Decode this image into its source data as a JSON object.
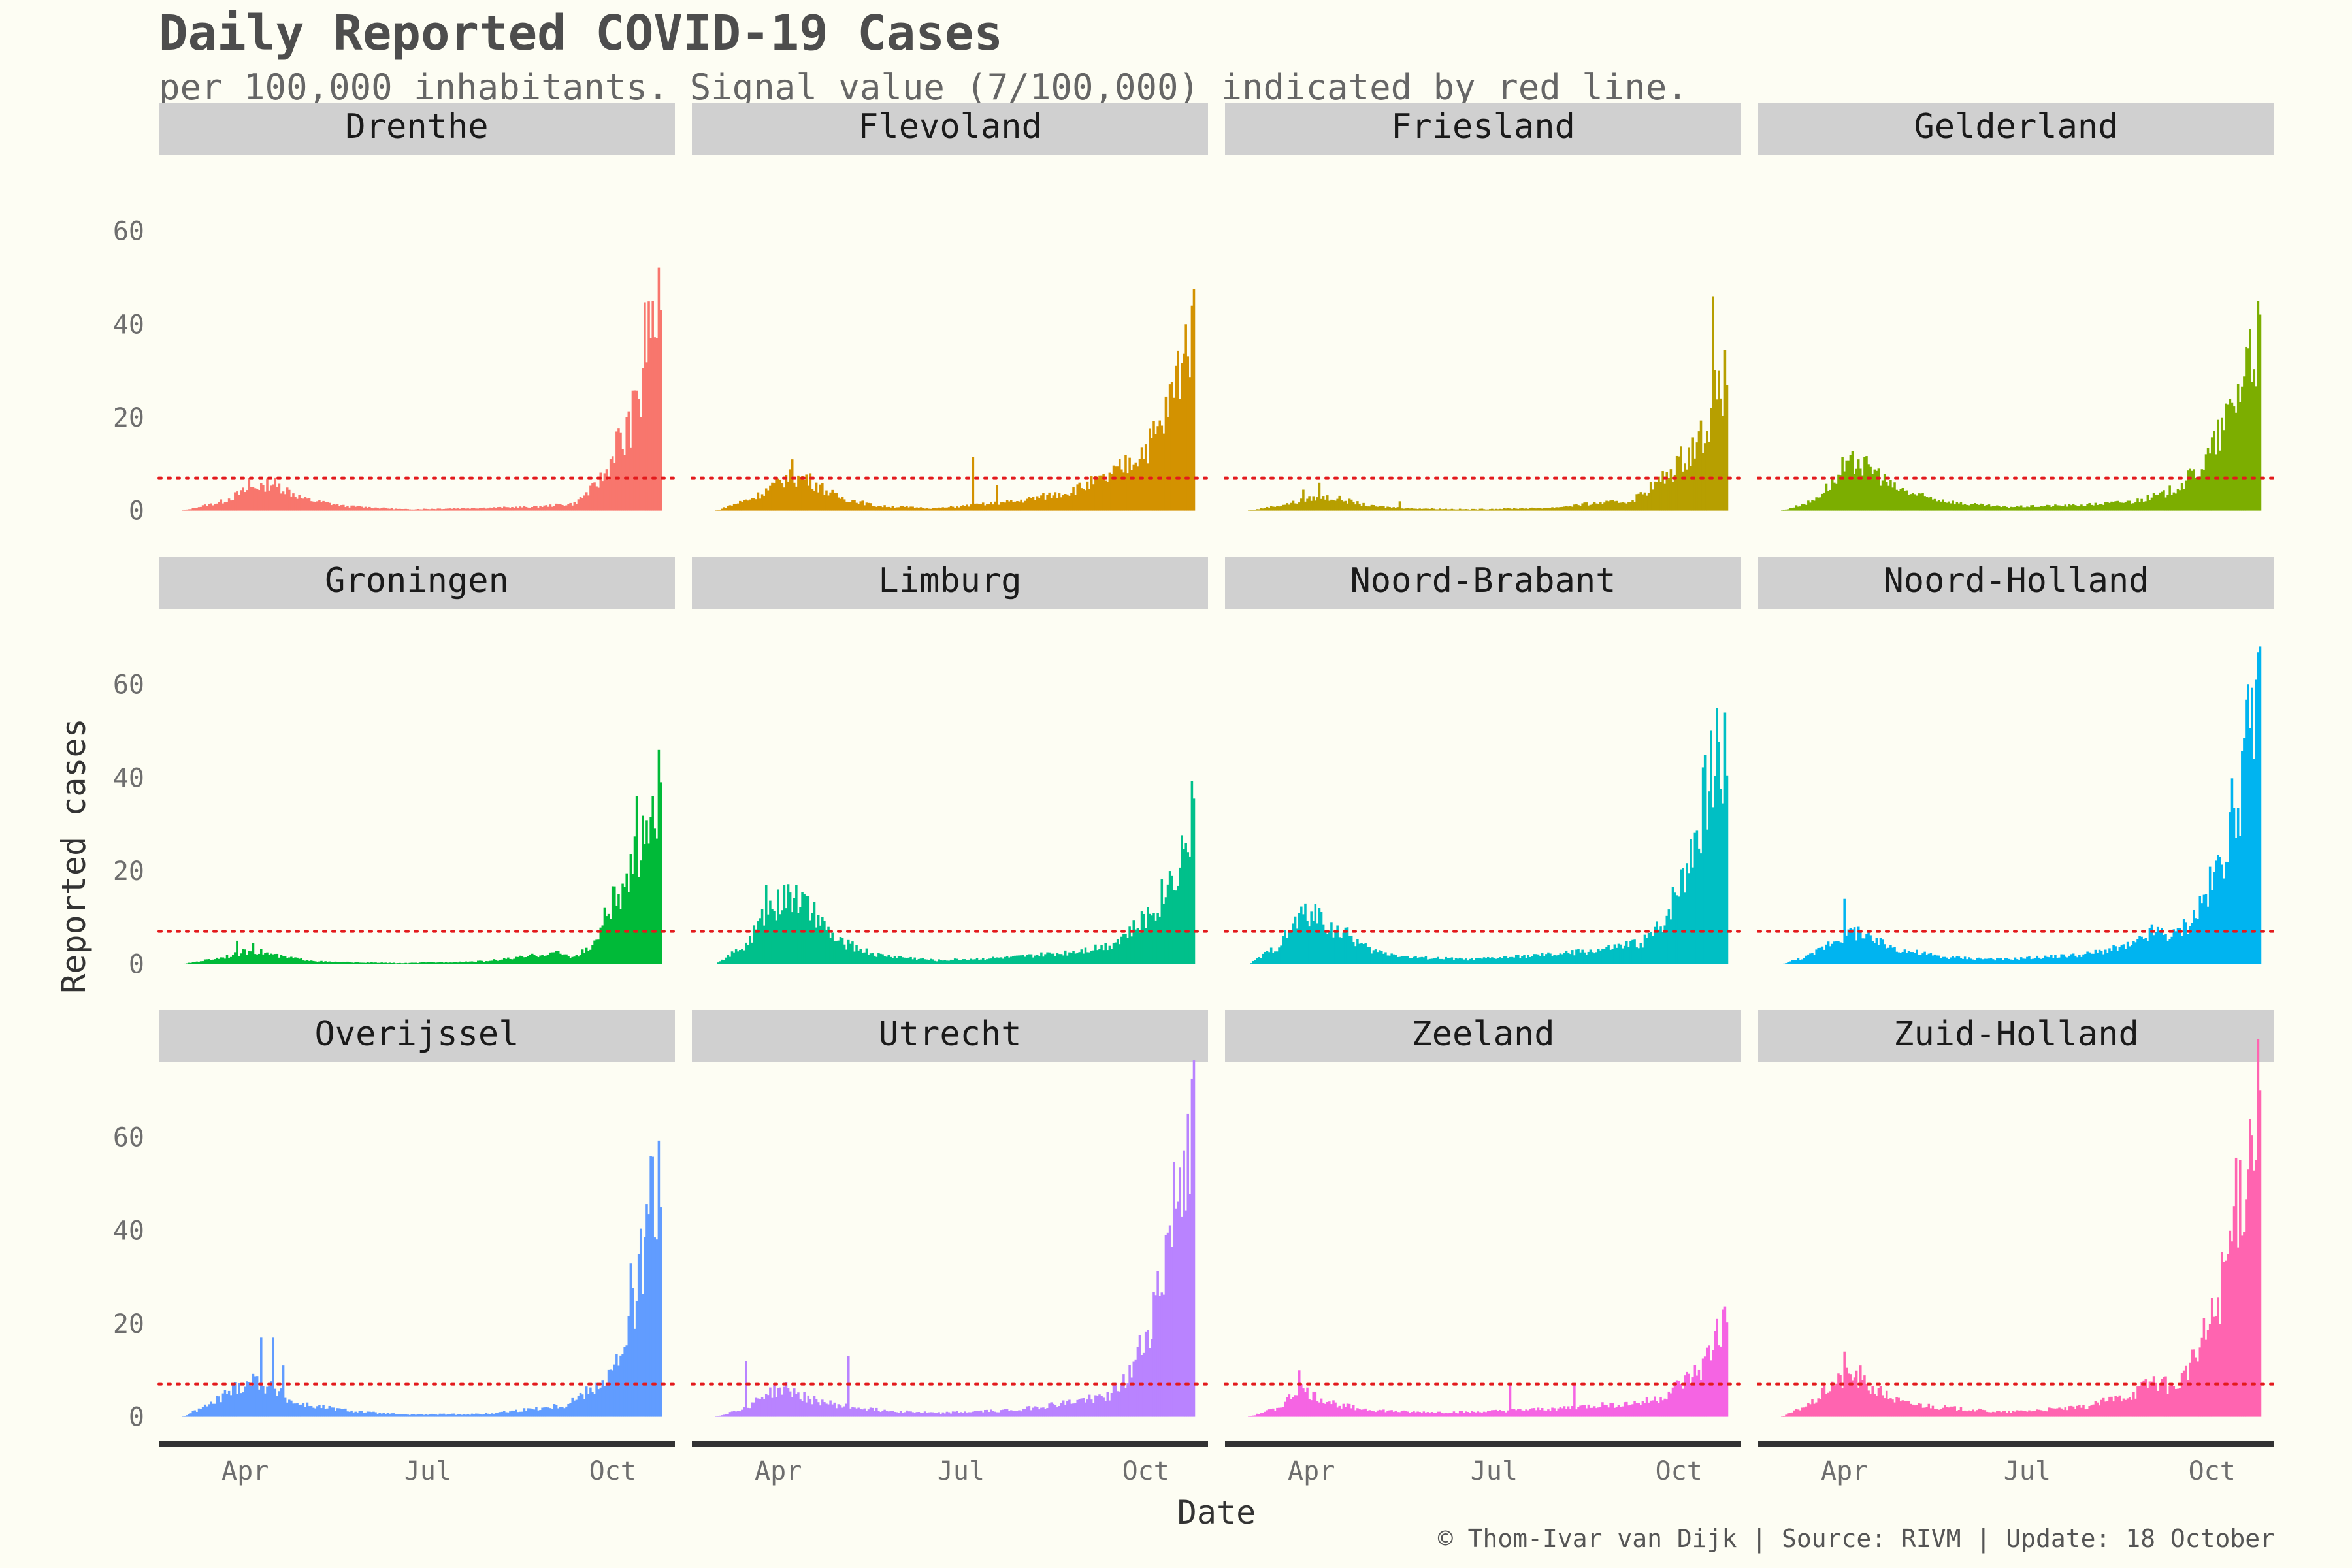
{
  "chart_data": {
    "type": "bar",
    "title": "Daily Reported COVID-19 Cases",
    "subtitle": "per 100,000 inhabitants. Signal value (7/100,000) indicated by red line.",
    "xlabel": "Date",
    "ylabel": "Reported cases",
    "caption": "© Thom-Ivar van Dijk | Source: RIVM | Update: 18 October",
    "y_ticks": [
      0,
      20,
      40,
      60
    ],
    "ylim": [
      -3,
      72
    ],
    "x_ticks": [
      "Apr",
      "Jul",
      "Oct"
    ],
    "x_tick_days": [
      31,
      122,
      214
    ],
    "x_range_days": [
      -12,
      245
    ],
    "signal_value": 7,
    "signal_color": "#e31a1c",
    "grid": false,
    "facets": [
      {
        "name": "Drenthe",
        "color": "#F8766D",
        "keys": [
          [
            0,
            0
          ],
          [
            20,
            2
          ],
          [
            35,
            5
          ],
          [
            45,
            6
          ],
          [
            60,
            2.5
          ],
          [
            80,
            1
          ],
          [
            110,
            0.3
          ],
          [
            150,
            0.6
          ],
          [
            175,
            0.8
          ],
          [
            195,
            1.5
          ],
          [
            205,
            5
          ],
          [
            212,
            9
          ],
          [
            216,
            15
          ],
          [
            220,
            14
          ],
          [
            225,
            22
          ],
          [
            230,
            36
          ],
          [
            235,
            43
          ],
          [
            238,
            40
          ]
        ],
        "spikes": [
          [
            33,
            7
          ],
          [
            40,
            5.5
          ],
          [
            47,
            5
          ],
          [
            221,
            20
          ],
          [
            228,
            20
          ],
          [
            234,
            45
          ],
          [
            236,
            37
          ],
          [
            238,
            43
          ]
        ]
      },
      {
        "name": "Flevoland",
        "color": "#D39200",
        "keys": [
          [
            0,
            0
          ],
          [
            20,
            3
          ],
          [
            35,
            7
          ],
          [
            45,
            7
          ],
          [
            60,
            3
          ],
          [
            80,
            1
          ],
          [
            110,
            0.5
          ],
          [
            150,
            2
          ],
          [
            175,
            4
          ],
          [
            195,
            7
          ],
          [
            205,
            10
          ],
          [
            215,
            14
          ],
          [
            222,
            18
          ],
          [
            228,
            26
          ],
          [
            233,
            36
          ],
          [
            238,
            42
          ]
        ],
        "spikes": [
          [
            38,
            11
          ],
          [
            128,
            11.5
          ],
          [
            140,
            5.5
          ],
          [
            234,
            40
          ],
          [
            237,
            44
          ]
        ]
      },
      {
        "name": "Friesland",
        "color": "#B79F00",
        "keys": [
          [
            0,
            0
          ],
          [
            20,
            1.5
          ],
          [
            35,
            3
          ],
          [
            45,
            2.5
          ],
          [
            60,
            1
          ],
          [
            80,
            0.5
          ],
          [
            110,
            0.3
          ],
          [
            150,
            0.6
          ],
          [
            170,
            1.5
          ],
          [
            190,
            2
          ],
          [
            200,
            5
          ],
          [
            210,
            8
          ],
          [
            215,
            11
          ],
          [
            220,
            13
          ],
          [
            225,
            16
          ],
          [
            230,
            21
          ],
          [
            235,
            28
          ],
          [
            238,
            27
          ]
        ],
        "spikes": [
          [
            27,
            4.5
          ],
          [
            35,
            6
          ],
          [
            75,
            2
          ],
          [
            231,
            46
          ],
          [
            234,
            30
          ],
          [
            238,
            27
          ]
        ]
      },
      {
        "name": "Gelderland",
        "color": "#7CAE00",
        "keys": [
          [
            0,
            0
          ],
          [
            15,
            2
          ],
          [
            25,
            6
          ],
          [
            35,
            10
          ],
          [
            45,
            9
          ],
          [
            55,
            5
          ],
          [
            70,
            3
          ],
          [
            90,
            1.5
          ],
          [
            110,
            0.8
          ],
          [
            150,
            1.2
          ],
          [
            175,
            2
          ],
          [
            190,
            3.5
          ],
          [
            200,
            6
          ],
          [
            210,
            10
          ],
          [
            220,
            18
          ],
          [
            228,
            27
          ],
          [
            233,
            35
          ],
          [
            238,
            36
          ]
        ],
        "spikes": [
          [
            30,
            11.5
          ],
          [
            38,
            11
          ],
          [
            43,
            10
          ],
          [
            233,
            39
          ]
        ]
      },
      {
        "name": "Groningen",
        "color": "#00BA38",
        "keys": [
          [
            0,
            0
          ],
          [
            20,
            1.5
          ],
          [
            35,
            3
          ],
          [
            50,
            1.5
          ],
          [
            70,
            0.5
          ],
          [
            110,
            0.2
          ],
          [
            150,
            0.6
          ],
          [
            170,
            1.5
          ],
          [
            185,
            2.5
          ],
          [
            195,
            1.5
          ],
          [
            205,
            4
          ],
          [
            210,
            10
          ],
          [
            215,
            14
          ],
          [
            220,
            14
          ],
          [
            225,
            22
          ],
          [
            230,
            30
          ],
          [
            235,
            34
          ],
          [
            238,
            38
          ]
        ],
        "spikes": [
          [
            27,
            5
          ],
          [
            35,
            4.5
          ],
          [
            226,
            36
          ],
          [
            234,
            36
          ],
          [
            238,
            39
          ]
        ]
      },
      {
        "name": "Limburg",
        "color": "#00C08B",
        "keys": [
          [
            0,
            0
          ],
          [
            15,
            4
          ],
          [
            25,
            11
          ],
          [
            30,
            13
          ],
          [
            40,
            14
          ],
          [
            50,
            10
          ],
          [
            60,
            5
          ],
          [
            80,
            2
          ],
          [
            110,
            0.8
          ],
          [
            150,
            1.5
          ],
          [
            175,
            2.5
          ],
          [
            195,
            4
          ],
          [
            210,
            8
          ],
          [
            220,
            13
          ],
          [
            228,
            20
          ],
          [
            233,
            25
          ],
          [
            238,
            33
          ]
        ],
        "spikes": [
          [
            25,
            17
          ],
          [
            31,
            16
          ],
          [
            34,
            17
          ],
          [
            40,
            17
          ],
          [
            44,
            15
          ],
          [
            238,
            35.5
          ]
        ]
      },
      {
        "name": "Noord-Brabant",
        "color": "#00BFC4",
        "keys": [
          [
            0,
            0
          ],
          [
            15,
            4
          ],
          [
            25,
            10
          ],
          [
            30,
            11
          ],
          [
            40,
            8
          ],
          [
            50,
            6
          ],
          [
            60,
            3
          ],
          [
            80,
            1.5
          ],
          [
            110,
            1
          ],
          [
            150,
            2
          ],
          [
            175,
            3
          ],
          [
            195,
            4.5
          ],
          [
            205,
            8
          ],
          [
            215,
            18
          ],
          [
            222,
            28
          ],
          [
            228,
            38
          ],
          [
            233,
            45
          ],
          [
            238,
            43
          ]
        ],
        "spikes": [
          [
            28,
            13
          ],
          [
            35,
            12
          ],
          [
            233,
            55
          ]
        ]
      },
      {
        "name": "Noord-Holland",
        "color": "#00B4F0",
        "keys": [
          [
            0,
            0
          ],
          [
            15,
            2
          ],
          [
            25,
            5
          ],
          [
            35,
            7
          ],
          [
            45,
            5
          ],
          [
            60,
            3
          ],
          [
            80,
            1.5
          ],
          [
            110,
            1
          ],
          [
            150,
            2
          ],
          [
            175,
            4
          ],
          [
            185,
            7
          ],
          [
            195,
            6
          ],
          [
            205,
            10
          ],
          [
            215,
            18
          ],
          [
            222,
            28
          ],
          [
            228,
            38
          ],
          [
            233,
            50
          ],
          [
            238,
            55
          ]
        ],
        "spikes": [
          [
            31,
            14
          ],
          [
            38,
            8
          ],
          [
            236,
            61
          ]
        ]
      },
      {
        "name": "Overijssel",
        "color": "#619CFF",
        "keys": [
          [
            0,
            0
          ],
          [
            15,
            3
          ],
          [
            25,
            6
          ],
          [
            35,
            8
          ],
          [
            45,
            6
          ],
          [
            55,
            3
          ],
          [
            70,
            2
          ],
          [
            90,
            1
          ],
          [
            110,
            0.5
          ],
          [
            150,
            0.6
          ],
          [
            170,
            1.5
          ],
          [
            190,
            2.5
          ],
          [
            200,
            5
          ],
          [
            210,
            8
          ],
          [
            218,
            12
          ],
          [
            225,
            25
          ],
          [
            232,
            42
          ],
          [
            237,
            48
          ],
          [
            238,
            46
          ]
        ],
        "spikes": [
          [
            39,
            17
          ],
          [
            45,
            17
          ],
          [
            50,
            11
          ],
          [
            223,
            33
          ],
          [
            233,
            56
          ]
        ]
      },
      {
        "name": "Utrecht",
        "color": "#B983FF",
        "keys": [
          [
            0,
            0
          ],
          [
            15,
            2
          ],
          [
            25,
            5
          ],
          [
            35,
            6
          ],
          [
            45,
            4
          ],
          [
            60,
            2.5
          ],
          [
            80,
            1.5
          ],
          [
            110,
            0.8
          ],
          [
            150,
            1.5
          ],
          [
            175,
            3
          ],
          [
            195,
            4.5
          ],
          [
            205,
            8
          ],
          [
            215,
            18
          ],
          [
            222,
            30
          ],
          [
            228,
            45
          ],
          [
            233,
            55
          ],
          [
            238,
            60
          ]
        ],
        "spikes": [
          [
            15,
            12
          ],
          [
            66,
            13
          ],
          [
            235,
            65
          ]
        ]
      },
      {
        "name": "Zeeland",
        "color": "#F564E3",
        "keys": [
          [
            0,
            0
          ],
          [
            15,
            2
          ],
          [
            25,
            6
          ],
          [
            35,
            4
          ],
          [
            45,
            2.5
          ],
          [
            60,
            1.5
          ],
          [
            80,
            1
          ],
          [
            110,
            1
          ],
          [
            140,
            1.5
          ],
          [
            160,
            2
          ],
          [
            175,
            2.5
          ],
          [
            195,
            3
          ],
          [
            205,
            4
          ],
          [
            215,
            7
          ],
          [
            225,
            10
          ],
          [
            232,
            16
          ],
          [
            238,
            20
          ]
        ],
        "spikes": [
          [
            25,
            10
          ],
          [
            130,
            7
          ],
          [
            162,
            7
          ],
          [
            233,
            21
          ],
          [
            236,
            23
          ]
        ]
      },
      {
        "name": "Zuid-Holland",
        "color": "#FF64B0",
        "keys": [
          [
            0,
            0
          ],
          [
            15,
            3
          ],
          [
            25,
            7
          ],
          [
            35,
            9
          ],
          [
            45,
            6
          ],
          [
            60,
            3
          ],
          [
            80,
            2
          ],
          [
            110,
            1
          ],
          [
            150,
            2
          ],
          [
            175,
            5
          ],
          [
            185,
            8
          ],
          [
            195,
            6
          ],
          [
            205,
            12
          ],
          [
            215,
            22
          ],
          [
            222,
            35
          ],
          [
            228,
            48
          ],
          [
            233,
            60
          ],
          [
            238,
            68
          ]
        ],
        "spikes": [
          [
            31,
            14
          ],
          [
            39,
            11
          ],
          [
            238,
            70
          ]
        ]
      }
    ]
  }
}
